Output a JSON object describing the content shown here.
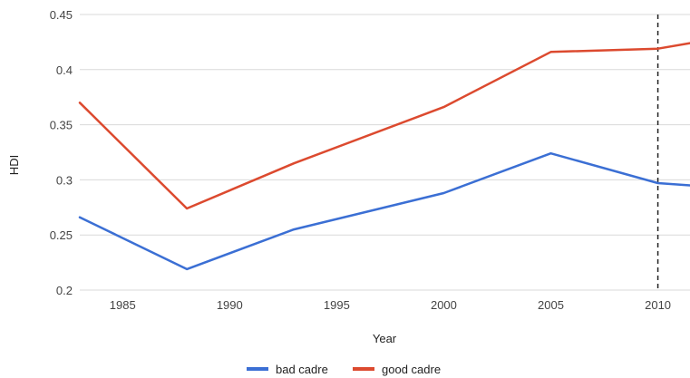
{
  "chart_data": {
    "type": "line",
    "title": "",
    "xlabel": "Year",
    "ylabel": "HDI",
    "xlim": [
      1983,
      2011.5
    ],
    "ylim": [
      0.2,
      0.45
    ],
    "x_ticks": [
      "1985",
      "1990",
      "1995",
      "2000",
      "2005",
      "2010"
    ],
    "y_ticks": [
      "0.2",
      "0.25",
      "0.3",
      "0.35",
      "0.4",
      "0.45"
    ],
    "grid": true,
    "legend_position": "bottom",
    "reference_line": {
      "x": 2010,
      "style": "dashed",
      "color": "#222222"
    },
    "series": [
      {
        "name": "bad cadre",
        "color": "#3b6fd4",
        "x": [
          1983,
          1988,
          1993,
          2000,
          2005,
          2010,
          2011.5
        ],
        "y": [
          0.266,
          0.219,
          0.255,
          0.288,
          0.324,
          0.297,
          0.295
        ]
      },
      {
        "name": "good cadre",
        "color": "#dc4a2f",
        "x": [
          1983,
          1988,
          1993,
          2000,
          2005,
          2010,
          2011.5
        ],
        "y": [
          0.37,
          0.274,
          0.315,
          0.366,
          0.416,
          0.419,
          0.424
        ]
      }
    ]
  }
}
